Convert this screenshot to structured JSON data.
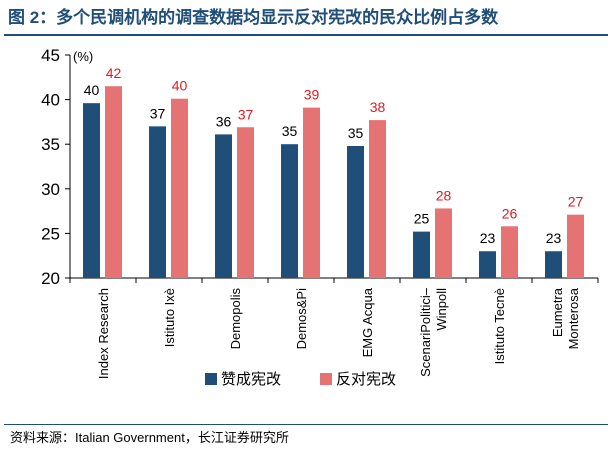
{
  "title": "图 2：多个民调机构的调查数据均显示反对宪改的民众比例占多数",
  "source": "资料来源：Italian Government，长江证券研究所",
  "colors": {
    "favor": "#1f4e79",
    "against": "#e57373",
    "title": "#1f4e79",
    "against_label": "#e31a1c"
  },
  "chart_data": {
    "type": "bar",
    "title": "",
    "ylabel": "(%)",
    "xlabel": "",
    "ylim": [
      20,
      45
    ],
    "yticks": [
      20,
      25,
      30,
      35,
      40,
      45
    ],
    "grid": false,
    "legend_position": "bottom",
    "categories": [
      "Index Research",
      "Istituto Ixè",
      "Demopolis",
      "Demos&Pi",
      "EMG Acqua",
      "ScenariPolitici–Winpoll",
      "Istituto Tecnè",
      "Eumetra Monterosa"
    ],
    "category_lines": [
      [
        "Index Research"
      ],
      [
        "Istituto Ixè"
      ],
      [
        "Demopolis"
      ],
      [
        "Demos&Pi"
      ],
      [
        "EMG Acqua"
      ],
      [
        "ScenariPolitici–",
        "Winpoll"
      ],
      [
        "Istituto Tecnè"
      ],
      [
        "Eumetra",
        "Monterosa"
      ]
    ],
    "series": [
      {
        "name": "赞成宪改",
        "values": [
          40,
          37,
          36,
          35,
          35,
          25,
          23,
          23
        ],
        "bar_values": [
          39.6,
          37.0,
          36.1,
          35.0,
          34.8,
          25.2,
          23.0,
          23.0
        ]
      },
      {
        "name": "反对宪改",
        "values": [
          42,
          40,
          37,
          39,
          38,
          28,
          26,
          27
        ],
        "bar_values": [
          41.5,
          40.1,
          36.9,
          39.1,
          37.7,
          27.8,
          25.8,
          27.1
        ]
      }
    ]
  }
}
